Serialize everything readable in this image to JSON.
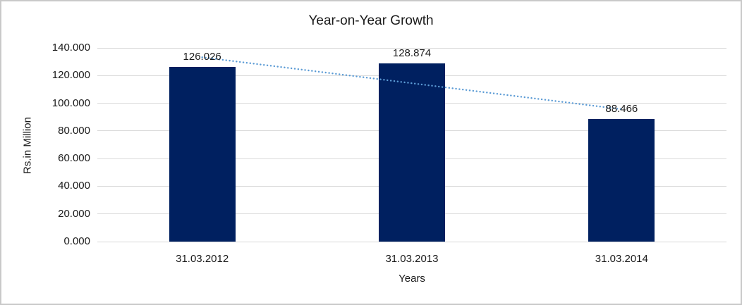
{
  "chart_data": {
    "type": "bar",
    "title": "Year-on-Year Growth",
    "categories": [
      "31.03.2012",
      "31.03.2013",
      "31.03.2014"
    ],
    "values": [
      126.026,
      128.874,
      88.466
    ],
    "value_labels": [
      "126.026",
      "128.874",
      "88.466"
    ],
    "xlabel": "Years",
    "ylabel": "Rs.in Million",
    "ylim": [
      0,
      140
    ],
    "ytick_step": 20,
    "ytick_labels": [
      "0.000",
      "20.000",
      "40.000",
      "60.000",
      "80.000",
      "100.000",
      "120.000",
      "140.000"
    ],
    "grid": true,
    "legend": "none",
    "colors": {
      "bar": "#002060",
      "trendline": "#5B9BD5",
      "gridline": "#d9d9d9",
      "text": "#1a1a1a",
      "border": "#c9c9c9"
    },
    "trendline": {
      "kind": "linear",
      "style": "dotted"
    }
  }
}
